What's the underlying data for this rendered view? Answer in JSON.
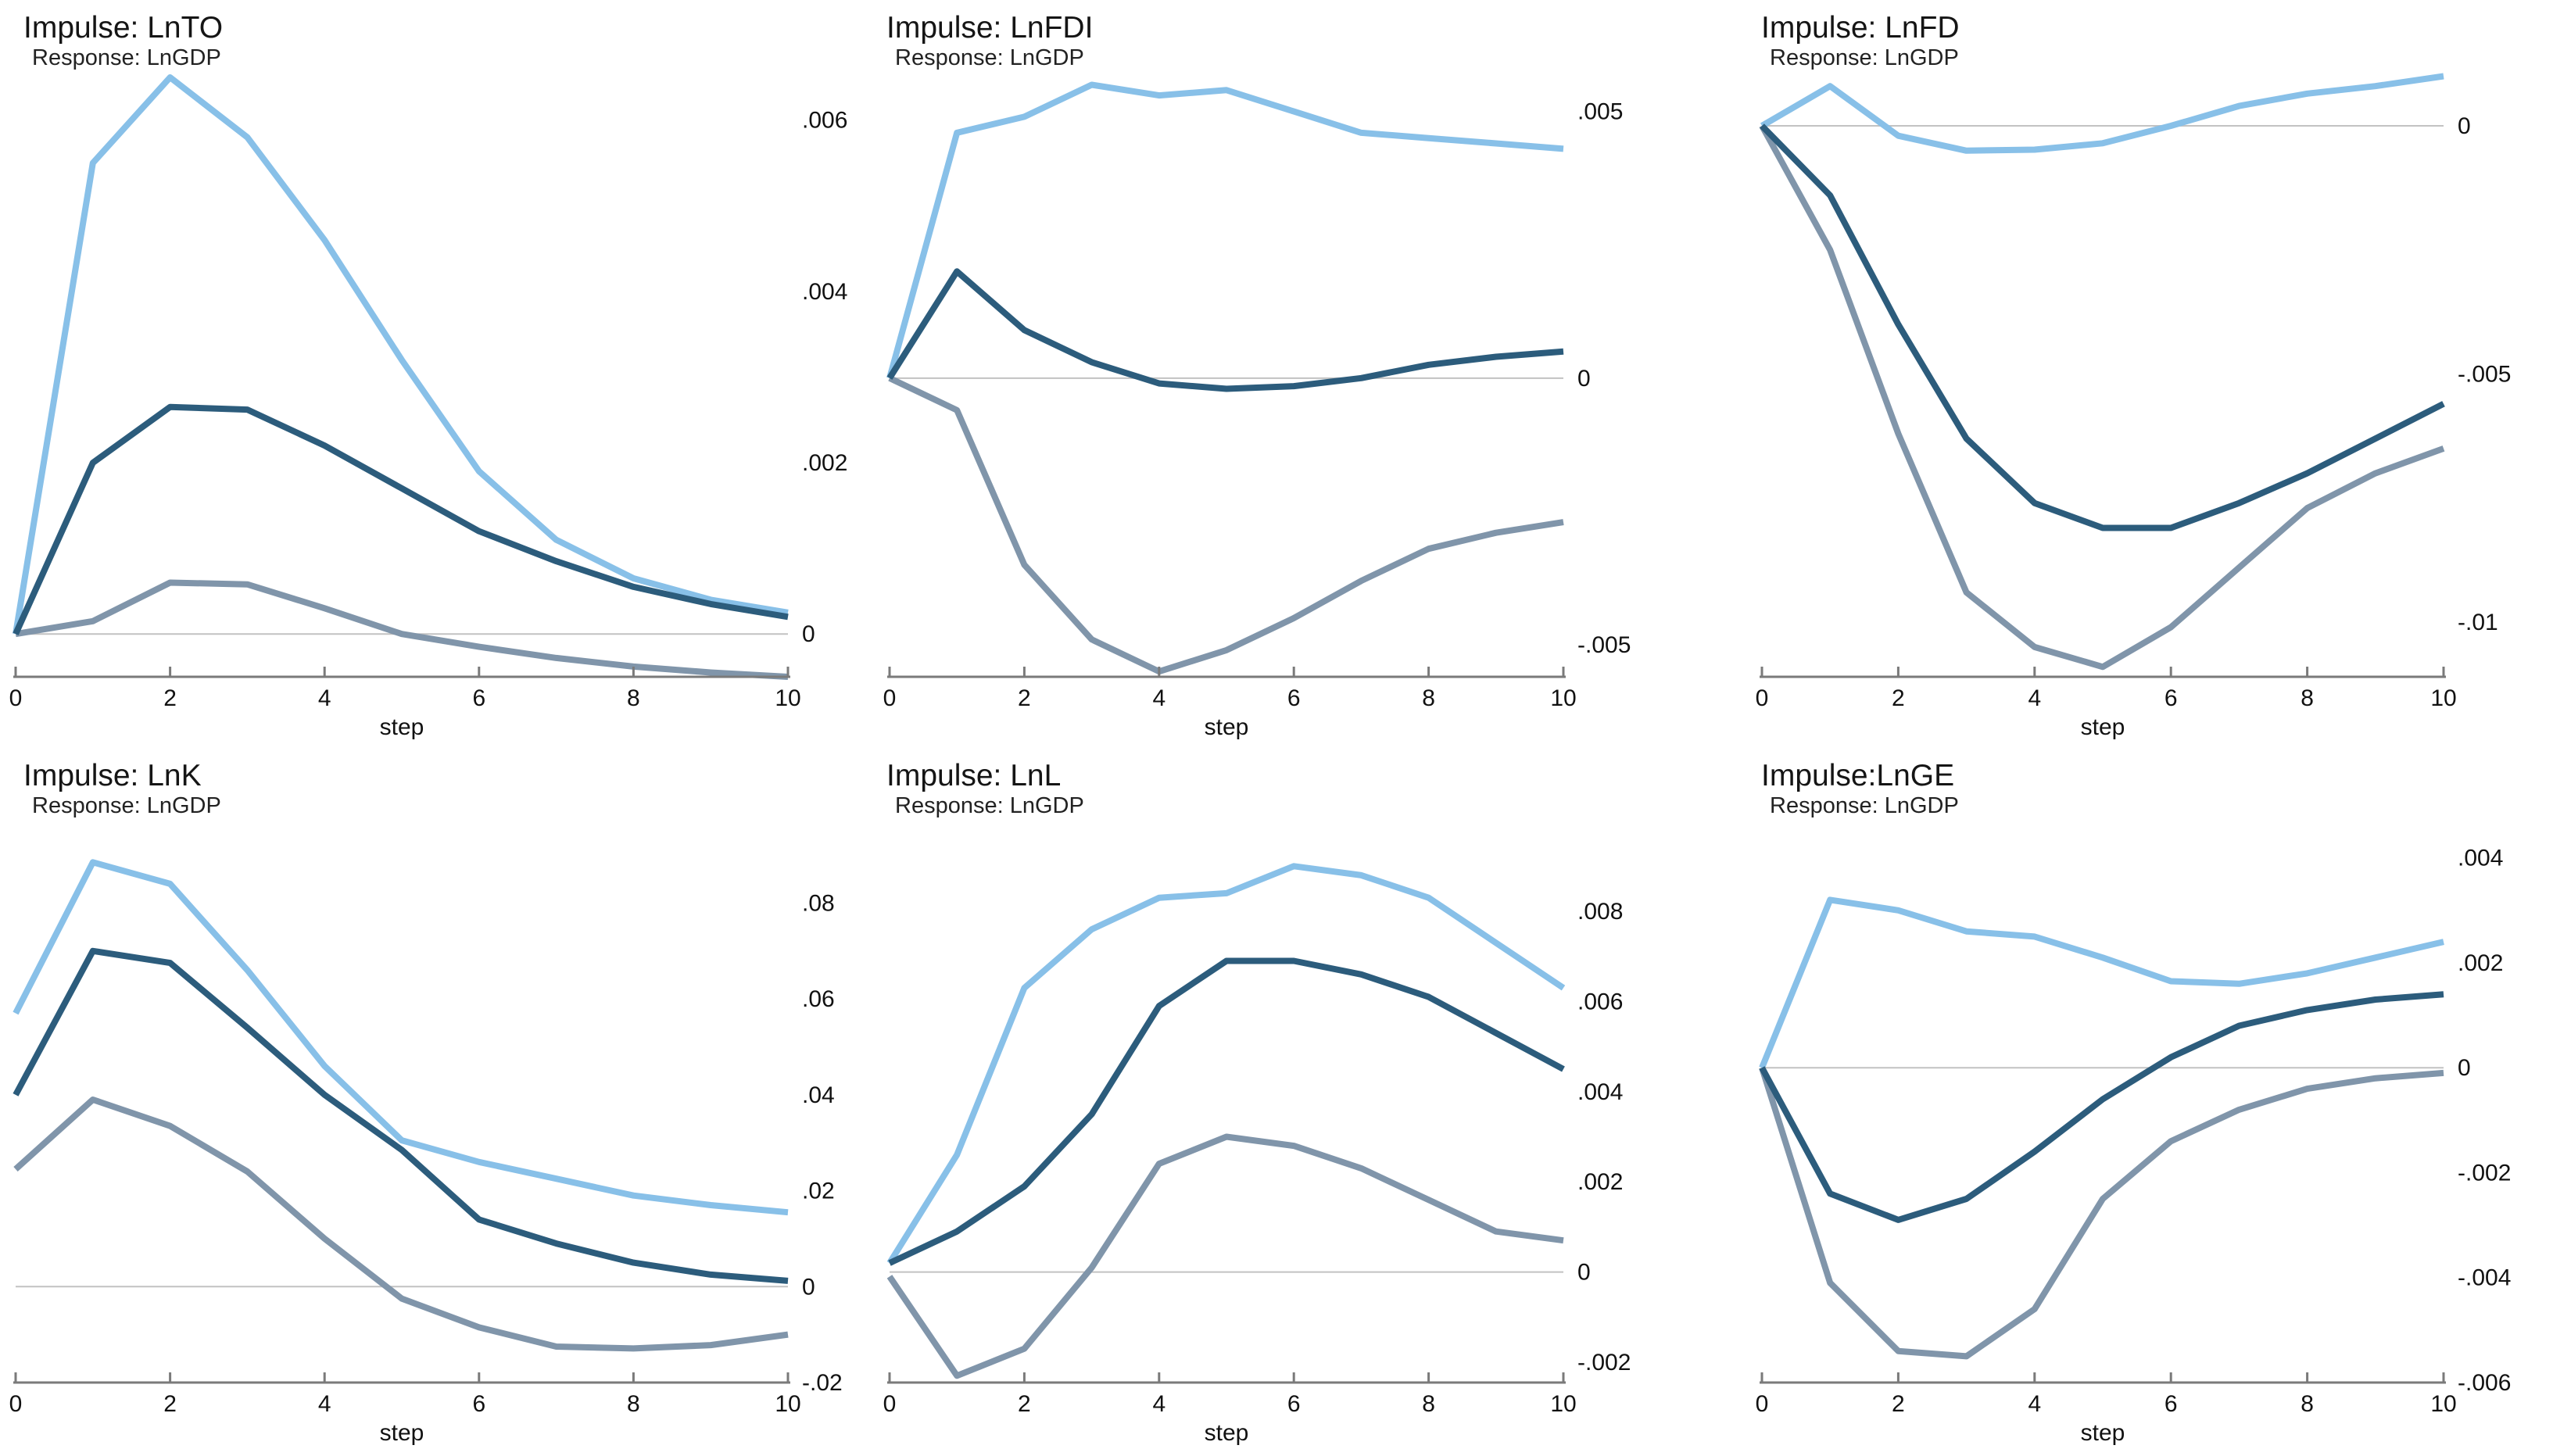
{
  "figure": {
    "kind": "stata-irf-multipanel",
    "rows": 2,
    "cols": 3,
    "background": "#ffffff"
  },
  "colors": {
    "upper": "#88c0e8",
    "irf": "#2c5c7c",
    "lower": "#8095aa",
    "zero_line": "#c2c2c2",
    "axis": "#7a7a7a",
    "text": "#111111"
  },
  "chart_data": [
    {
      "type": "line",
      "id": "lnto",
      "title": "Impulse: LnTO",
      "subtitle": "Response: LnGDP",
      "xlabel": "step",
      "x": [
        0,
        1,
        2,
        3,
        4,
        5,
        6,
        7,
        8,
        9,
        10
      ],
      "x_ticks": [
        0,
        2,
        4,
        6,
        8,
        10
      ],
      "xlim": [
        0,
        10
      ],
      "ylim": [
        -0.0005,
        0.0066
      ],
      "grid": false,
      "legend": "none",
      "y_ticks": [
        {
          "label": ".006",
          "value": 0.006
        },
        {
          "label": ".004",
          "value": 0.004
        },
        {
          "label": ".002",
          "value": 0.002
        },
        {
          "label": "0",
          "value": 0
        }
      ],
      "series": [
        {
          "name": "upper-95-ci",
          "role": "upper",
          "values": [
            0,
            0.0055,
            0.0065,
            0.0058,
            0.0046,
            0.0032,
            0.0019,
            0.0011,
            0.00065,
            0.0004,
            0.00025
          ]
        },
        {
          "name": "irf-estimate",
          "role": "irf",
          "values": [
            0,
            0.002,
            0.00265,
            0.00262,
            0.0022,
            0.0017,
            0.0012,
            0.00085,
            0.00055,
            0.00035,
            0.0002
          ]
        },
        {
          "name": "lower-95-ci",
          "role": "lower",
          "values": [
            0,
            0.00015,
            0.0006,
            0.00058,
            0.0003,
            0.0,
            -0.00015,
            -0.00028,
            -0.00038,
            -0.00045,
            -0.0005
          ]
        }
      ]
    },
    {
      "type": "line",
      "id": "lnfdi",
      "title": "Impulse: LnFDI",
      "subtitle": "Response: LnGDP",
      "xlabel": "step",
      "x": [
        0,
        1,
        2,
        3,
        4,
        5,
        6,
        7,
        8,
        9,
        10
      ],
      "x_ticks": [
        0,
        2,
        4,
        6,
        8,
        10
      ],
      "xlim": [
        0,
        10
      ],
      "ylim": [
        -0.0056,
        0.0058
      ],
      "grid": false,
      "legend": "none",
      "y_ticks": [
        {
          "label": ".005",
          "value": 0.005
        },
        {
          "label": "0",
          "value": 0
        },
        {
          "label": "-.005",
          "value": -0.005
        }
      ],
      "series": [
        {
          "name": "upper-95-ci",
          "role": "upper",
          "values": [
            0,
            0.0046,
            0.0049,
            0.0055,
            0.0053,
            0.0054,
            0.005,
            0.0046,
            0.0045,
            0.0044,
            0.0043
          ]
        },
        {
          "name": "irf-estimate",
          "role": "irf",
          "values": [
            0,
            0.002,
            0.0009,
            0.0003,
            -0.0001,
            -0.0002,
            -0.00015,
            0.0,
            0.00025,
            0.0004,
            0.0005
          ]
        },
        {
          "name": "lower-95-ci",
          "role": "lower",
          "values": [
            0,
            -0.0006,
            -0.0035,
            -0.0049,
            -0.0055,
            -0.0051,
            -0.0045,
            -0.0038,
            -0.0032,
            -0.0029,
            -0.0027
          ]
        }
      ]
    },
    {
      "type": "line",
      "id": "lnfd",
      "title": "Impulse: LnFD",
      "subtitle": "Response: LnGDP",
      "xlabel": "step",
      "x": [
        0,
        1,
        2,
        3,
        4,
        5,
        6,
        7,
        8,
        9,
        10
      ],
      "x_ticks": [
        0,
        2,
        4,
        6,
        8,
        10
      ],
      "xlim": [
        0,
        10
      ],
      "ylim": [
        -0.0111,
        0.00115
      ],
      "grid": false,
      "legend": "none",
      "y_ticks": [
        {
          "label": "0",
          "value": 0
        },
        {
          "label": "-.005",
          "value": -0.005
        },
        {
          "label": "-.01",
          "value": -0.01
        }
      ],
      "series": [
        {
          "name": "upper-95-ci",
          "role": "upper",
          "values": [
            0,
            0.0008,
            -0.0002,
            -0.0005,
            -0.00048,
            -0.00035,
            0.0,
            0.0004,
            0.00065,
            0.0008,
            0.001
          ]
        },
        {
          "name": "irf-estimate",
          "role": "irf",
          "values": [
            0,
            -0.0014,
            -0.004,
            -0.0063,
            -0.0076,
            -0.0081,
            -0.0081,
            -0.0076,
            -0.007,
            -0.0063,
            -0.0056
          ]
        },
        {
          "name": "lower-95-ci",
          "role": "lower",
          "values": [
            0,
            -0.0025,
            -0.0062,
            -0.0094,
            -0.0105,
            -0.0109,
            -0.0101,
            -0.0089,
            -0.0077,
            -0.007,
            -0.0065
          ]
        }
      ]
    },
    {
      "type": "line",
      "id": "lnk",
      "title": "Impulse: LnK",
      "subtitle": "Response: LnGDP",
      "xlabel": "step",
      "x": [
        0,
        1,
        2,
        3,
        4,
        5,
        6,
        7,
        8,
        9,
        10
      ],
      "x_ticks": [
        0,
        2,
        4,
        6,
        8,
        10
      ],
      "xlim": [
        0,
        10
      ],
      "ylim": [
        -0.02,
        0.0905
      ],
      "grid": false,
      "legend": "none",
      "y_ticks": [
        {
          "label": ".08",
          "value": 0.08
        },
        {
          "label": ".06",
          "value": 0.06
        },
        {
          "label": ".04",
          "value": 0.04
        },
        {
          "label": ".02",
          "value": 0.02
        },
        {
          "label": "0",
          "value": 0
        },
        {
          "label": "-.02",
          "value": -0.02
        }
      ],
      "series": [
        {
          "name": "upper-95-ci",
          "role": "upper",
          "values": [
            0.057,
            0.0885,
            0.084,
            0.066,
            0.046,
            0.0305,
            0.026,
            0.0225,
            0.019,
            0.017,
            0.0155
          ]
        },
        {
          "name": "irf-estimate",
          "role": "irf",
          "values": [
            0.04,
            0.07,
            0.0675,
            0.054,
            0.04,
            0.0285,
            0.014,
            0.009,
            0.005,
            0.0025,
            0.0012
          ]
        },
        {
          "name": "lower-95-ci",
          "role": "lower",
          "values": [
            0.0245,
            0.039,
            0.0335,
            0.024,
            0.01,
            -0.0025,
            -0.0085,
            -0.0125,
            -0.0129,
            -0.0122,
            -0.01
          ]
        }
      ]
    },
    {
      "type": "line",
      "id": "lnl",
      "title": "Impulse: LnL",
      "subtitle": "Response: LnGDP",
      "xlabel": "step",
      "x": [
        0,
        1,
        2,
        3,
        4,
        5,
        6,
        7,
        8,
        9,
        10
      ],
      "x_ticks": [
        0,
        2,
        4,
        6,
        8,
        10
      ],
      "xlim": [
        0,
        10
      ],
      "ylim": [
        -0.00245,
        0.0093
      ],
      "grid": false,
      "legend": "none",
      "y_ticks": [
        {
          "label": ".008",
          "value": 0.008
        },
        {
          "label": ".006",
          "value": 0.006
        },
        {
          "label": ".004",
          "value": 0.004
        },
        {
          "label": ".002",
          "value": 0.002
        },
        {
          "label": "0",
          "value": 0
        },
        {
          "label": "-.002",
          "value": -0.002
        }
      ],
      "series": [
        {
          "name": "upper-95-ci",
          "role": "upper",
          "values": [
            0.0002,
            0.0026,
            0.0063,
            0.0076,
            0.0083,
            0.0084,
            0.009,
            0.0088,
            0.0083,
            0.0073,
            0.0063
          ]
        },
        {
          "name": "irf-estimate",
          "role": "irf",
          "values": [
            0.0002,
            0.0009,
            0.0019,
            0.0035,
            0.0059,
            0.0069,
            0.0069,
            0.0066,
            0.0061,
            0.0053,
            0.0045
          ]
        },
        {
          "name": "lower-95-ci",
          "role": "lower",
          "values": [
            -0.0001,
            -0.0023,
            -0.0017,
            0.0001,
            0.0024,
            0.003,
            0.0028,
            0.0023,
            0.0016,
            0.0009,
            0.0007
          ]
        }
      ]
    },
    {
      "type": "line",
      "id": "lnge",
      "title": "Impulse:LnGE",
      "subtitle": "Response: LnGDP",
      "xlabel": "step",
      "x": [
        0,
        1,
        2,
        3,
        4,
        5,
        6,
        7,
        8,
        9,
        10
      ],
      "x_ticks": [
        0,
        2,
        4,
        6,
        8,
        10
      ],
      "xlim": [
        0,
        10
      ],
      "ylim": [
        -0.006,
        0.0041
      ],
      "grid": false,
      "legend": "none",
      "y_ticks": [
        {
          "label": ".004",
          "value": 0.004
        },
        {
          "label": ".002",
          "value": 0.002
        },
        {
          "label": "0",
          "value": 0
        },
        {
          "label": "-.002",
          "value": -0.002
        },
        {
          "label": "-.004",
          "value": -0.004
        },
        {
          "label": "-.006",
          "value": -0.006
        }
      ],
      "series": [
        {
          "name": "upper-95-ci",
          "role": "upper",
          "values": [
            0,
            0.0032,
            0.003,
            0.0026,
            0.0025,
            0.0021,
            0.00165,
            0.0016,
            0.0018,
            0.0021,
            0.0024
          ]
        },
        {
          "name": "irf-estimate",
          "role": "irf",
          "values": [
            0,
            -0.0024,
            -0.0029,
            -0.0025,
            -0.0016,
            -0.0006,
            0.0002,
            0.0008,
            0.0011,
            0.0013,
            0.0014
          ]
        },
        {
          "name": "lower-95-ci",
          "role": "lower",
          "values": [
            0,
            -0.0041,
            -0.0054,
            -0.0055,
            -0.0046,
            -0.0025,
            -0.0014,
            -0.0008,
            -0.0004,
            -0.0002,
            -0.0001
          ]
        }
      ]
    }
  ]
}
